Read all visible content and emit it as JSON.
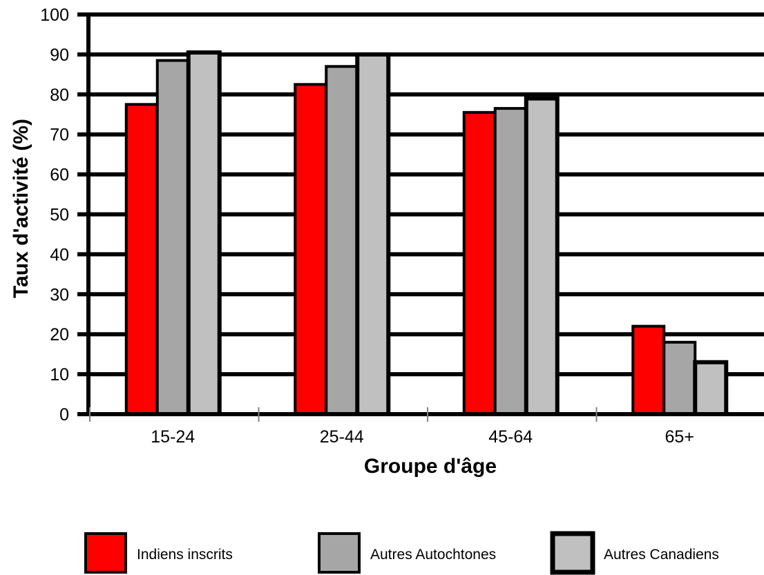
{
  "chart_data": {
    "type": "bar",
    "title": "",
    "xlabel": "Groupe d'âge",
    "ylabel": "Taux d'activité (%)",
    "ylim": [
      0,
      100
    ],
    "ytick_step": 10,
    "grid": true,
    "legend_position": "bottom",
    "categories": [
      "15-24",
      "25-44",
      "45-64",
      "65+"
    ],
    "series": [
      {
        "name": "Indiens inscrits",
        "color": "#ff0000",
        "values": [
          77.5,
          82.5,
          75.5,
          22
        ]
      },
      {
        "name": "Autres Autochtones",
        "color": "#a6a6a6",
        "values": [
          88.5,
          87,
          76.5,
          18
        ]
      },
      {
        "name": "Autres Canadiens",
        "color": "#c0c0c0",
        "values": [
          90.5,
          90,
          79,
          13
        ]
      }
    ]
  }
}
